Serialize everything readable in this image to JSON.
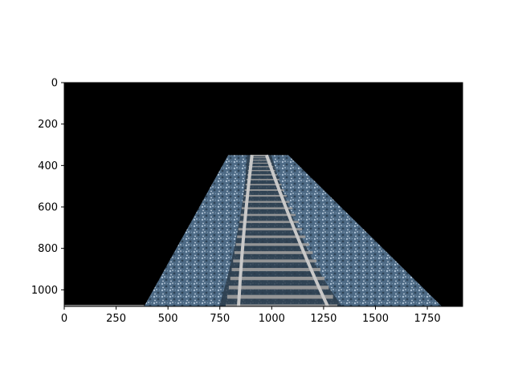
{
  "chart_data": {
    "type": "image",
    "title": "",
    "xlabel": "",
    "ylabel": "",
    "image_width": 1920,
    "image_height": 1080,
    "xlim": [
      0,
      1920
    ],
    "ylim": [
      1080,
      0
    ],
    "y_axis_inverted": true,
    "xticks": [
      0,
      250,
      500,
      750,
      1000,
      1250,
      1500,
      1750
    ],
    "yticks": [
      0,
      200,
      400,
      600,
      800,
      1000
    ],
    "grid": false,
    "legend": "none",
    "content": "masked railway track image: black background with a trapezoidal region showing rails, sleepers and ballast",
    "visible_region": {
      "top_y": 350,
      "bottom_y": 1080,
      "top_x": [
        790,
        1080
      ],
      "bottom_x": [
        385,
        1820
      ]
    },
    "colors": {
      "background_mask": "#000000",
      "ballast": "#5a7a96",
      "ballast_light": "#8fa9c2",
      "rail": "#c8c8c8",
      "sleeper": "#9a9a9a"
    }
  }
}
